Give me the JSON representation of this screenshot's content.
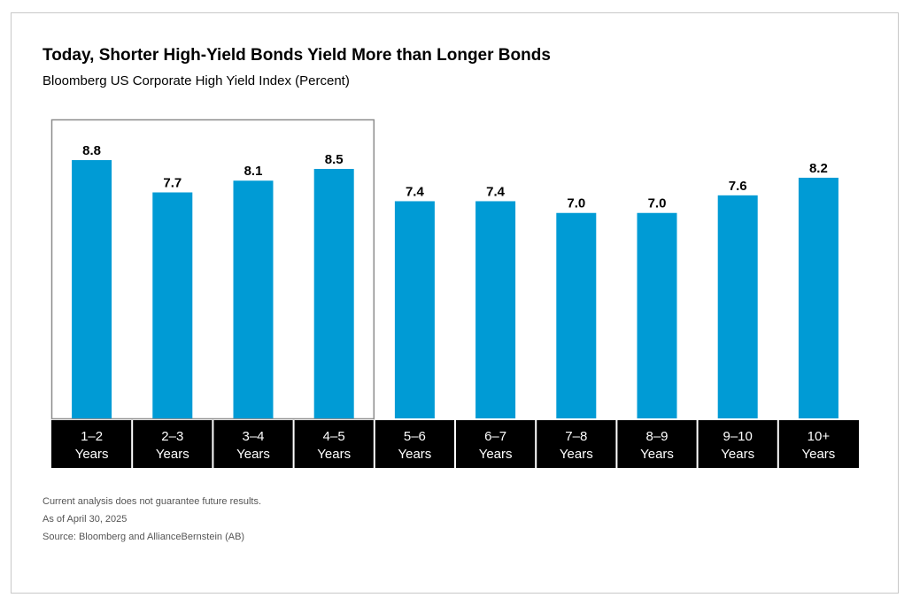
{
  "title": "Today, Shorter High-Yield Bonds Yield More than Longer Bonds",
  "subtitle": "Bloomberg US Corporate High Yield Index (Percent)",
  "chart_data": {
    "type": "bar",
    "title": "Today, Shorter High-Yield Bonds Yield More than Longer Bonds",
    "subtitle": "Bloomberg US Corporate High Yield Index (Percent)",
    "categories": [
      [
        "1–2",
        "Years"
      ],
      [
        "2–3",
        "Years"
      ],
      [
        "3–4",
        "Years"
      ],
      [
        "4–5",
        "Years"
      ],
      [
        "5–6",
        "Years"
      ],
      [
        "6–7",
        "Years"
      ],
      [
        "7–8",
        "Years"
      ],
      [
        "8–9",
        "Years"
      ],
      [
        "9–10",
        "Years"
      ],
      [
        "10+",
        "Years"
      ]
    ],
    "values": [
      8.8,
      7.7,
      8.1,
      8.5,
      7.4,
      7.4,
      7.0,
      7.0,
      7.6,
      8.2
    ],
    "value_labels": [
      "8.8",
      "7.7",
      "8.1",
      "8.5",
      "7.4",
      "7.4",
      "7.0",
      "7.0",
      "7.6",
      "8.2"
    ],
    "ylim": [
      0,
      9.6
    ],
    "highlight_range": [
      0,
      3
    ],
    "grid": false,
    "legend": "none",
    "colors": {
      "bar": "#009bd5",
      "category_band": "#000000",
      "category_text": "#ffffff",
      "highlight_border": "#8c8c8c",
      "value_label": "#000000"
    }
  },
  "footnotes": [
    "Current analysis does not guarantee future results.",
    "As of April 30, 2025",
    "Source: Bloomberg and AllianceBernstein (AB)"
  ]
}
